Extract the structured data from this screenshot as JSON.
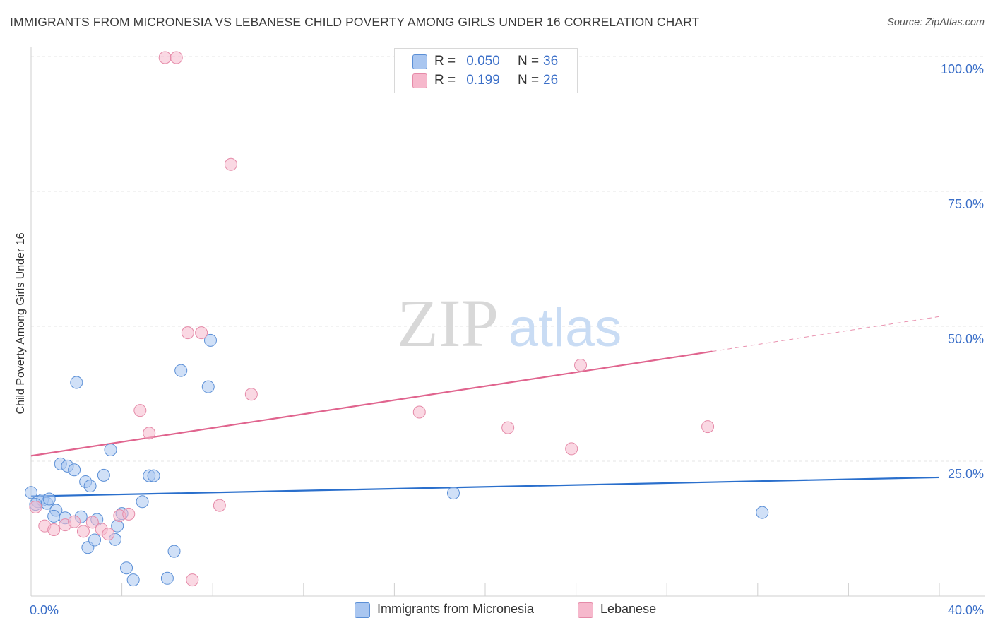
{
  "title": "IMMIGRANTS FROM MICRONESIA VS LEBANESE CHILD POVERTY AMONG GIRLS UNDER 16 CORRELATION CHART",
  "source": "Source: ZipAtlas.com",
  "watermark": {
    "zip": "ZIP",
    "atlas": "atlas"
  },
  "legend_top": [
    {
      "r_label": "R =",
      "r_value": "0.050",
      "n_label": "N =",
      "n_value": "36",
      "color": "#a9c6f0"
    },
    {
      "r_label": "R =",
      "r_value": "0.199",
      "n_label": "N =",
      "n_value": "26",
      "color": "#f6b8cc"
    }
  ],
  "chart_data": {
    "type": "scatter",
    "xlabel": "",
    "ylabel": "Child Poverty Among Girls Under 16",
    "xlim": [
      0,
      40
    ],
    "ylim": [
      0,
      100
    ],
    "x_tick_labels": [
      "0.0%",
      "40.0%"
    ],
    "y_ticks": [
      25,
      50,
      75,
      100
    ],
    "y_tick_labels": [
      "25.0%",
      "50.0%",
      "75.0%",
      "100.0%"
    ],
    "grid": true,
    "legend": "bottom-center",
    "series": [
      {
        "name": "Immigrants from Micronesia",
        "color": "#a9c6f0",
        "stroke": "#5b8fd6",
        "line_color": "#2a6fcc",
        "trend": {
          "x0": 0,
          "y0": 18.5,
          "x1": 40,
          "y1": 22.0,
          "solid_to": 40
        },
        "points": [
          [
            0.0,
            19.2
          ],
          [
            0.3,
            17.5
          ],
          [
            0.5,
            17.8
          ],
          [
            0.7,
            17.2
          ],
          [
            1.1,
            15.9
          ],
          [
            1.0,
            14.8
          ],
          [
            1.3,
            24.5
          ],
          [
            1.5,
            14.5
          ],
          [
            1.6,
            24.1
          ],
          [
            1.9,
            23.4
          ],
          [
            2.0,
            39.6
          ],
          [
            2.2,
            14.7
          ],
          [
            2.4,
            21.2
          ],
          [
            2.6,
            20.4
          ],
          [
            2.5,
            9.0
          ],
          [
            2.8,
            10.4
          ],
          [
            2.9,
            14.2
          ],
          [
            3.2,
            22.4
          ],
          [
            3.5,
            27.1
          ],
          [
            3.7,
            10.5
          ],
          [
            3.8,
            13.0
          ],
          [
            4.0,
            15.3
          ],
          [
            4.2,
            5.2
          ],
          [
            4.5,
            3.0
          ],
          [
            4.9,
            17.5
          ],
          [
            5.2,
            22.3
          ],
          [
            5.4,
            22.3
          ],
          [
            6.0,
            3.3
          ],
          [
            6.3,
            8.3
          ],
          [
            6.6,
            41.8
          ],
          [
            7.8,
            38.8
          ],
          [
            7.9,
            47.4
          ],
          [
            18.6,
            19.1
          ],
          [
            32.2,
            15.5
          ],
          [
            0.2,
            17.0
          ],
          [
            0.8,
            18.0
          ]
        ]
      },
      {
        "name": "Lebanese",
        "color": "#f6b8cc",
        "stroke": "#e58aa8",
        "line_color": "#e0648e",
        "trend": {
          "x0": 0,
          "y0": 26.0,
          "x1": 40,
          "y1": 51.8,
          "solid_to": 30
        },
        "points": [
          [
            0.2,
            16.5
          ],
          [
            0.6,
            13.0
          ],
          [
            1.0,
            12.3
          ],
          [
            1.5,
            13.2
          ],
          [
            1.9,
            13.8
          ],
          [
            2.3,
            12.0
          ],
          [
            2.7,
            13.7
          ],
          [
            3.1,
            12.4
          ],
          [
            3.4,
            11.5
          ],
          [
            3.9,
            14.9
          ],
          [
            4.3,
            15.2
          ],
          [
            4.8,
            34.4
          ],
          [
            5.2,
            30.2
          ],
          [
            5.9,
            99.8
          ],
          [
            6.4,
            99.8
          ],
          [
            6.9,
            48.8
          ],
          [
            7.5,
            48.8
          ],
          [
            7.1,
            3.0
          ],
          [
            8.3,
            16.8
          ],
          [
            8.8,
            80.0
          ],
          [
            9.7,
            37.4
          ],
          [
            17.1,
            34.1
          ],
          [
            21.0,
            31.2
          ],
          [
            23.8,
            27.3
          ],
          [
            24.2,
            42.8
          ],
          [
            29.8,
            31.4
          ]
        ]
      }
    ]
  }
}
